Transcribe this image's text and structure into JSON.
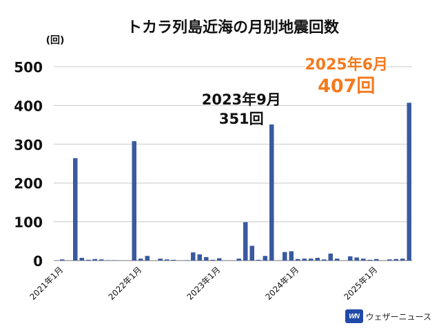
{
  "chart_data": {
    "type": "bar",
    "title": "トカラ列島近海の月別地震回数",
    "ylabel": "(回)",
    "ylim": [
      0,
      500
    ],
    "yticks": [
      "0",
      "100",
      "200",
      "300",
      "400",
      "500"
    ],
    "grid": true,
    "bar_color": "#3a5a9e",
    "x_tick_labels": [
      {
        "label": "2021年1月",
        "index": 0
      },
      {
        "label": "2022年1月",
        "index": 12
      },
      {
        "label": "2023年1月",
        "index": 24
      },
      {
        "label": "2024年1月",
        "index": 36
      },
      {
        "label": "2025年1月",
        "index": 48
      }
    ],
    "categories": [
      "2021-01",
      "2021-02",
      "2021-03",
      "2021-04",
      "2021-05",
      "2021-06",
      "2021-07",
      "2021-08",
      "2021-09",
      "2021-10",
      "2021-11",
      "2021-12",
      "2022-01",
      "2022-02",
      "2022-03",
      "2022-04",
      "2022-05",
      "2022-06",
      "2022-07",
      "2022-08",
      "2022-09",
      "2022-10",
      "2022-11",
      "2022-12",
      "2023-01",
      "2023-02",
      "2023-03",
      "2023-04",
      "2023-05",
      "2023-06",
      "2023-07",
      "2023-08",
      "2023-09",
      "2023-10",
      "2023-11",
      "2023-12",
      "2024-01",
      "2024-02",
      "2024-03",
      "2024-04",
      "2024-05",
      "2024-06",
      "2024-07",
      "2024-08",
      "2024-09",
      "2024-10",
      "2024-11",
      "2024-12",
      "2025-01",
      "2025-02",
      "2025-03",
      "2025-04",
      "2025-05",
      "2025-06"
    ],
    "values": [
      3,
      0,
      264,
      7,
      2,
      4,
      3,
      1,
      1,
      0,
      0,
      308,
      5,
      12,
      0,
      5,
      3,
      2,
      0,
      1,
      21,
      16,
      9,
      2,
      6,
      0,
      0,
      5,
      99,
      38,
      2,
      12,
      351,
      0,
      22,
      24,
      4,
      5,
      5,
      7,
      3,
      18,
      5,
      0,
      11,
      8,
      5,
      2,
      4,
      0,
      3,
      4,
      5,
      407
    ],
    "annotations": [
      {
        "text_line1": "2023年9月",
        "text_line2": "351回",
        "index": 32,
        "color": "#111111"
      },
      {
        "text_line1": "2025年6月",
        "text_line2": "407回",
        "index": 53,
        "color": "#f47a1f"
      }
    ]
  },
  "logo": {
    "badge": "WN",
    "text": "ウェザーニュース"
  }
}
